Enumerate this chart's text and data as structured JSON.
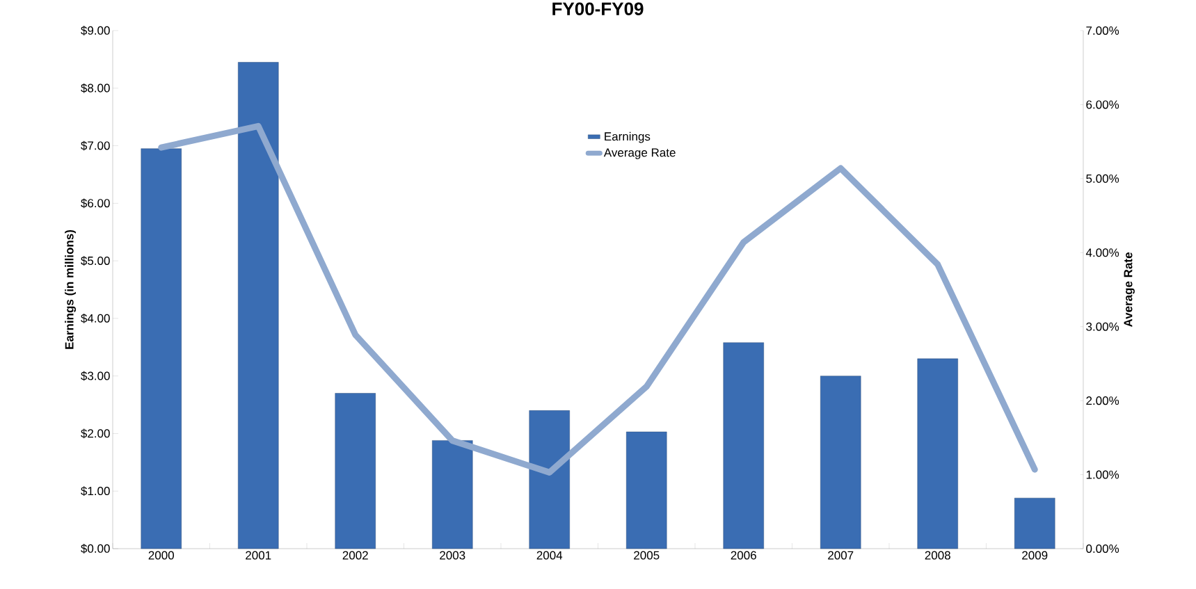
{
  "chart_data": {
    "type": "bar",
    "title": "FY00-FY09",
    "ylabel": "Earnings (in millions)",
    "y2label": "Average Rate",
    "categories": [
      "2000",
      "2001",
      "2002",
      "2003",
      "2004",
      "2005",
      "2006",
      "2007",
      "2008",
      "2009"
    ],
    "series": [
      {
        "name": "Earnings",
        "color": "#3a6db3",
        "values": [
          6.95,
          8.45,
          2.7,
          1.88,
          2.4,
          2.03,
          3.58,
          3.0,
          3.3,
          0.88
        ]
      },
      {
        "name": "Average Rate",
        "type": "line",
        "axis": "y2",
        "color": "#8fa9cf",
        "values": [
          5.42,
          5.71,
          2.89,
          1.46,
          1.03,
          2.19,
          4.14,
          5.14,
          3.84,
          1.07
        ]
      }
    ],
    "ylim": [
      0,
      9
    ],
    "yticks": [
      {
        "value": 0,
        "label": "$0.00"
      },
      {
        "value": 1,
        "label": "$1.00"
      },
      {
        "value": 2,
        "label": "$2.00"
      },
      {
        "value": 3,
        "label": "$3.00"
      },
      {
        "value": 4,
        "label": "$4.00"
      },
      {
        "value": 5,
        "label": "$5.00"
      },
      {
        "value": 6,
        "label": "$6.00"
      },
      {
        "value": 7,
        "label": "$7.00"
      },
      {
        "value": 8,
        "label": "$8.00"
      },
      {
        "value": 9,
        "label": "$9.00"
      }
    ],
    "y2lim": [
      0,
      7
    ],
    "y2ticks": [
      {
        "value": 0,
        "label": "0.00%"
      },
      {
        "value": 1,
        "label": "1.00%"
      },
      {
        "value": 2,
        "label": "2.00%"
      },
      {
        "value": 3,
        "label": "3.00%"
      },
      {
        "value": 4,
        "label": "4.00%"
      },
      {
        "value": 5,
        "label": "5.00%"
      },
      {
        "value": 6,
        "label": "6.00%"
      },
      {
        "value": 7,
        "label": "7.00%"
      }
    ],
    "legend": "top",
    "grid": false
  }
}
